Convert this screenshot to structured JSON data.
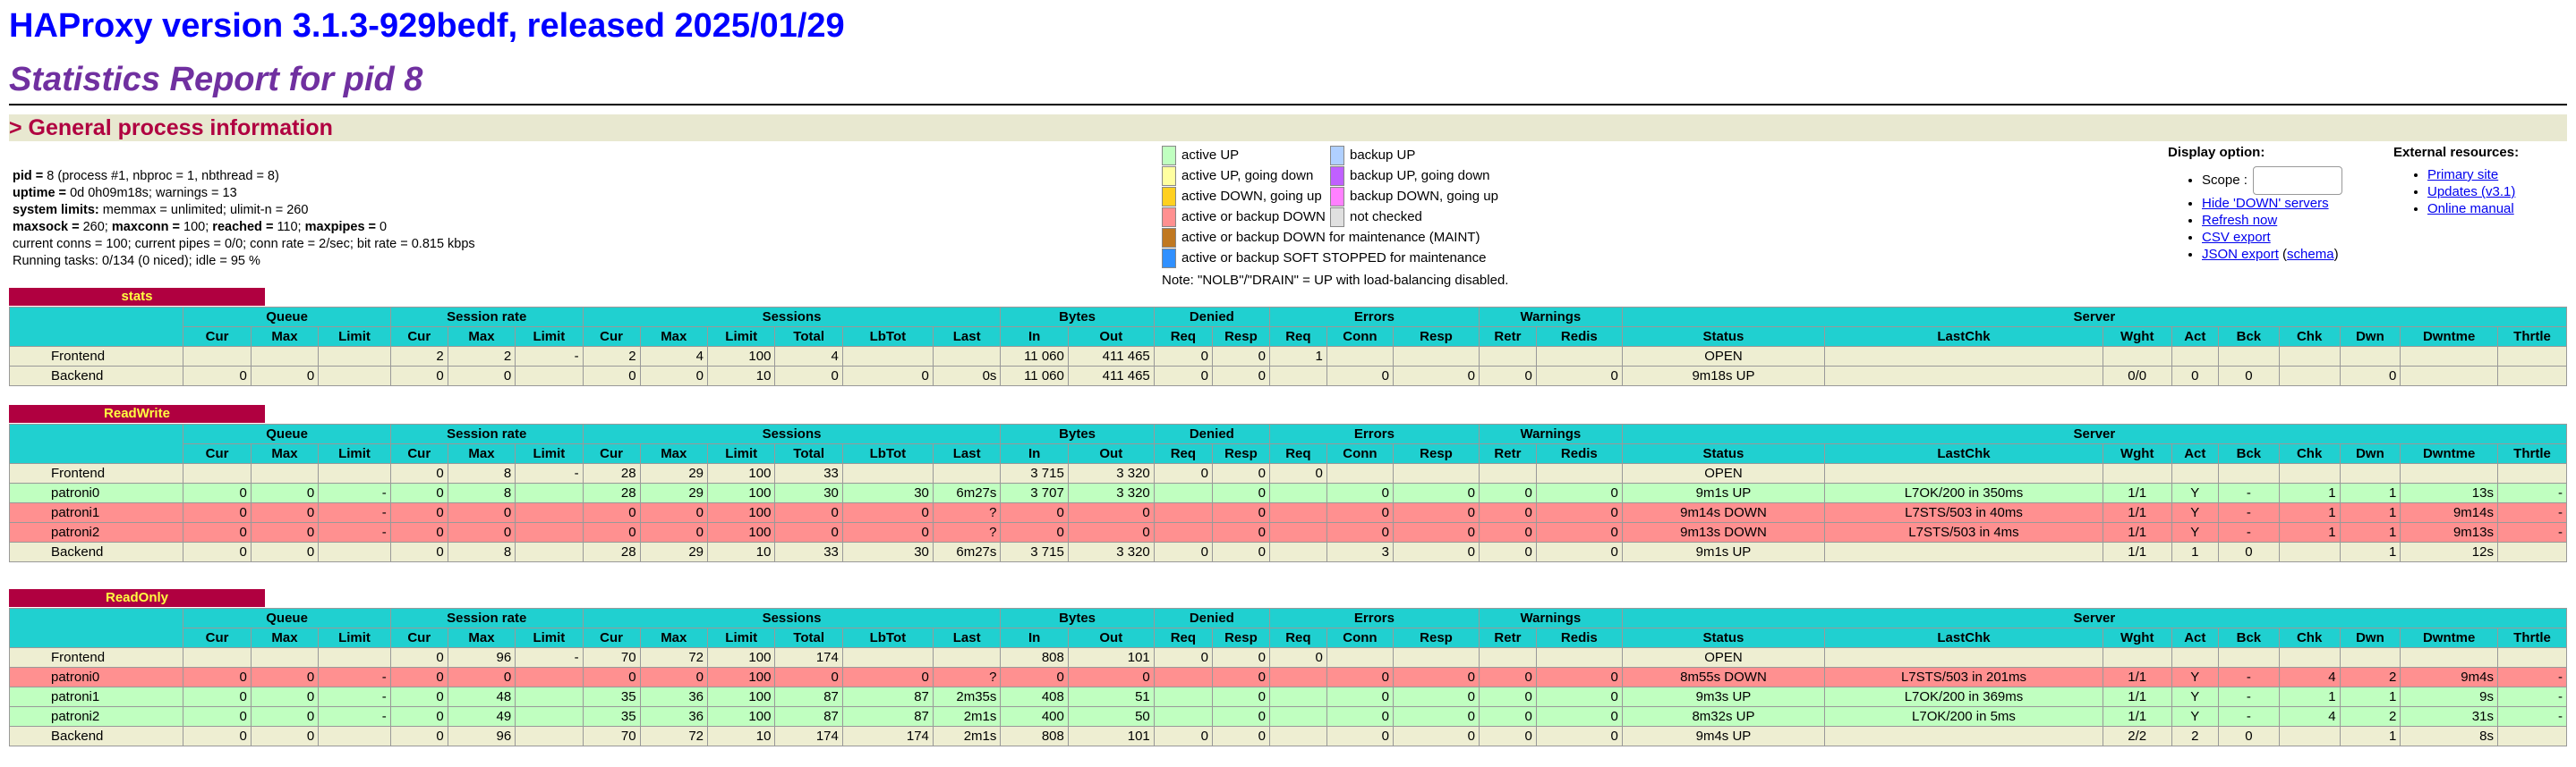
{
  "header": {
    "title": "HAProxy version 3.1.3-929bedf, released 2025/01/29",
    "subtitle": "Statistics Report for pid 8",
    "section": "> General process information"
  },
  "info": {
    "pid_label": "pid = ",
    "pid_value": "8 (process #1, nbproc = 1, nbthread = 8)",
    "uptime_label": "uptime = ",
    "uptime_value": "0d 0h09m18s; warnings = 13",
    "limits_label": "system limits:",
    "limits_value": " memmax = unlimited; ulimit-n = 260",
    "maxsock_label": "maxsock = ",
    "maxsock_value": "260; ",
    "maxconn_label": "maxconn = ",
    "maxconn_value": "100; ",
    "reached_label": "reached = ",
    "reached_value": "110; ",
    "maxpipes_label": "maxpipes = ",
    "maxpipes_value": "0",
    "conns_line": "current conns = 100; current pipes = 0/0; conn rate = 2/sec; bit rate = 0.815 kbps",
    "tasks_line": "Running tasks: 0/134 (0 niced); idle = 95 %"
  },
  "legend": {
    "col1": [
      {
        "label": "active UP",
        "color": "#c0ffc0"
      },
      {
        "label": "active UP, going down",
        "color": "#ffffa0"
      },
      {
        "label": "active DOWN, going up",
        "color": "#ffd020"
      },
      {
        "label": "active or backup DOWN",
        "color": "#ff9090"
      },
      {
        "label": "active or backup DOWN for maintenance (MAINT)",
        "color": "#c07820"
      },
      {
        "label": "active or backup SOFT STOPPED for maintenance",
        "color": "#3090ff"
      }
    ],
    "col2": [
      {
        "label": "backup UP",
        "color": "#b0d0ff"
      },
      {
        "label": "backup UP, going down",
        "color": "#c060ff"
      },
      {
        "label": "backup DOWN, going up",
        "color": "#ff80ff"
      },
      {
        "label": "not checked",
        "color": "#e0e0e0"
      }
    ],
    "note": "Note: \"NOLB\"/\"DRAIN\" = UP with load-balancing disabled."
  },
  "display": {
    "title": "Display option:",
    "scope_label": "Scope : ",
    "links": [
      "Hide 'DOWN' servers",
      "Refresh now",
      "CSV export"
    ],
    "json_export": "JSON export",
    "schema_open": " (",
    "schema": "schema",
    "schema_close": ")"
  },
  "external": {
    "title": "External resources:",
    "links": [
      "Primary site",
      "Updates (v3.1)",
      "Online manual"
    ]
  },
  "tables": {
    "groups": [
      "Queue",
      "Session rate",
      "Sessions",
      "Bytes",
      "Denied",
      "Errors",
      "Warnings",
      "Server"
    ],
    "columns": [
      "Cur",
      "Max",
      "Limit",
      "Cur",
      "Max",
      "Limit",
      "Cur",
      "Max",
      "Limit",
      "Total",
      "LbTot",
      "Last",
      "In",
      "Out",
      "Req",
      "Resp",
      "Req",
      "Conn",
      "Resp",
      "Retr",
      "Redis",
      "Status",
      "LastChk",
      "Wght",
      "Act",
      "Bck",
      "Chk",
      "Dwn",
      "Dwntme",
      "Thrtle"
    ],
    "proxies": [
      {
        "name": "stats",
        "rows": [
          {
            "kind": "front",
            "cells": [
              "Frontend",
              "",
              "",
              "",
              "2",
              "2",
              "-",
              "2",
              "4",
              "100",
              "4",
              "",
              "",
              "11 060",
              "411 465",
              "0",
              "0",
              "1",
              "",
              "",
              "",
              "",
              "OPEN",
              "",
              "",
              "",
              "",
              "",
              "",
              "",
              ""
            ]
          },
          {
            "kind": "back",
            "cells": [
              "Backend",
              "0",
              "0",
              "",
              "0",
              "0",
              "",
              "0",
              "0",
              "10",
              "0",
              "0",
              "0s",
              "11 060",
              "411 465",
              "0",
              "0",
              "",
              "0",
              "0",
              "0",
              "0",
              "9m18s UP",
              "",
              "0/0",
              "0",
              "0",
              "",
              "0",
              "",
              ""
            ]
          }
        ]
      },
      {
        "name": "ReadWrite",
        "rows": [
          {
            "kind": "front",
            "cells": [
              "Frontend",
              "",
              "",
              "",
              "0",
              "8",
              "-",
              "28",
              "29",
              "100",
              "33",
              "",
              "",
              "3 715",
              "3 320",
              "0",
              "0",
              "0",
              "",
              "",
              "",
              "",
              "OPEN",
              "",
              "",
              "",
              "",
              "",
              "",
              "",
              ""
            ]
          },
          {
            "kind": "up",
            "cells": [
              "patroni0",
              "0",
              "0",
              "-",
              "0",
              "8",
              "",
              "28",
              "29",
              "100",
              "30",
              "30",
              "6m27s",
              "3 707",
              "3 320",
              "",
              "0",
              "",
              "0",
              "0",
              "0",
              "0",
              "9m1s UP",
              "L7OK/200 in 350ms",
              "1/1",
              "Y",
              "-",
              "1",
              "1",
              "13s",
              "-"
            ]
          },
          {
            "kind": "down",
            "cells": [
              "patroni1",
              "0",
              "0",
              "-",
              "0",
              "0",
              "",
              "0",
              "0",
              "100",
              "0",
              "0",
              "?",
              "0",
              "0",
              "",
              "0",
              "",
              "0",
              "0",
              "0",
              "0",
              "9m14s DOWN",
              "L7STS/503 in 40ms",
              "1/1",
              "Y",
              "-",
              "1",
              "1",
              "9m14s",
              "-"
            ]
          },
          {
            "kind": "down",
            "cells": [
              "patroni2",
              "0",
              "0",
              "-",
              "0",
              "0",
              "",
              "0",
              "0",
              "100",
              "0",
              "0",
              "?",
              "0",
              "0",
              "",
              "0",
              "",
              "0",
              "0",
              "0",
              "0",
              "9m13s DOWN",
              "L7STS/503 in 4ms",
              "1/1",
              "Y",
              "-",
              "1",
              "1",
              "9m13s",
              "-"
            ]
          },
          {
            "kind": "back",
            "cells": [
              "Backend",
              "0",
              "0",
              "",
              "0",
              "8",
              "",
              "28",
              "29",
              "10",
              "33",
              "30",
              "6m27s",
              "3 715",
              "3 320",
              "0",
              "0",
              "",
              "3",
              "0",
              "0",
              "0",
              "9m1s UP",
              "",
              "1/1",
              "1",
              "0",
              "",
              "1",
              "12s",
              ""
            ]
          }
        ]
      },
      {
        "name": "ReadOnly",
        "rows": [
          {
            "kind": "front",
            "cells": [
              "Frontend",
              "",
              "",
              "",
              "0",
              "96",
              "-",
              "70",
              "72",
              "100",
              "174",
              "",
              "",
              "808",
              "101",
              "0",
              "0",
              "0",
              "",
              "",
              "",
              "",
              "OPEN",
              "",
              "",
              "",
              "",
              "",
              "",
              "",
              ""
            ]
          },
          {
            "kind": "down",
            "cells": [
              "patroni0",
              "0",
              "0",
              "-",
              "0",
              "0",
              "",
              "0",
              "0",
              "100",
              "0",
              "0",
              "?",
              "0",
              "0",
              "",
              "0",
              "",
              "0",
              "0",
              "0",
              "0",
              "8m55s DOWN",
              "L7STS/503 in 201ms",
              "1/1",
              "Y",
              "-",
              "4",
              "2",
              "9m4s",
              "-"
            ]
          },
          {
            "kind": "up",
            "cells": [
              "patroni1",
              "0",
              "0",
              "-",
              "0",
              "48",
              "",
              "35",
              "36",
              "100",
              "87",
              "87",
              "2m35s",
              "408",
              "51",
              "",
              "0",
              "",
              "0",
              "0",
              "0",
              "0",
              "9m3s UP",
              "L7OK/200 in 369ms",
              "1/1",
              "Y",
              "-",
              "1",
              "1",
              "9s",
              "-"
            ]
          },
          {
            "kind": "up",
            "cells": [
              "patroni2",
              "0",
              "0",
              "-",
              "0",
              "49",
              "",
              "35",
              "36",
              "100",
              "87",
              "87",
              "2m1s",
              "400",
              "50",
              "",
              "0",
              "",
              "0",
              "0",
              "0",
              "0",
              "8m32s UP",
              "L7OK/200 in 5ms",
              "1/1",
              "Y",
              "-",
              "4",
              "2",
              "31s",
              "-"
            ]
          },
          {
            "kind": "back",
            "cells": [
              "Backend",
              "0",
              "0",
              "",
              "0",
              "96",
              "",
              "70",
              "72",
              "10",
              "174",
              "174",
              "2m1s",
              "808",
              "101",
              "0",
              "0",
              "",
              "0",
              "0",
              "0",
              "0",
              "9m4s UP",
              "",
              "2/2",
              "2",
              "0",
              "",
              "1",
              "8s",
              ""
            ]
          }
        ]
      }
    ]
  }
}
